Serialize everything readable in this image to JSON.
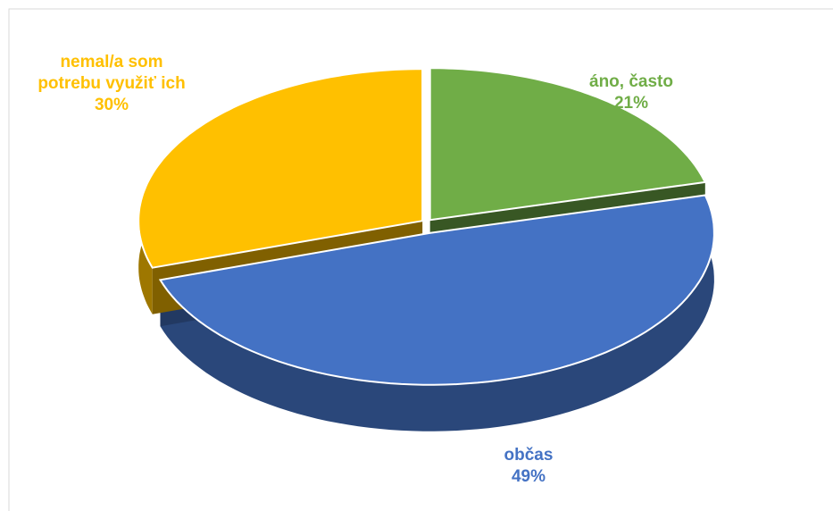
{
  "chart_data": {
    "type": "pie",
    "categories": [
      "áno, často",
      "občas",
      "nemal/a som potrebu využiť ich"
    ],
    "values": [
      21,
      49,
      30
    ],
    "value_labels": [
      "21%",
      "49%",
      "30%"
    ],
    "colors": [
      "#70ad47",
      "#4472c4",
      "#ffc000"
    ]
  }
}
